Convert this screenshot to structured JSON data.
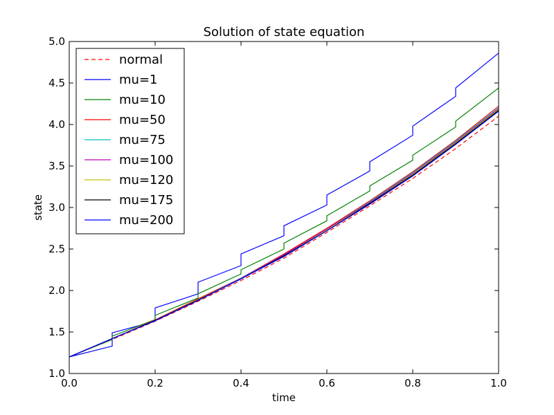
{
  "chart_data": {
    "type": "line",
    "title": "Solution of state equation",
    "xlabel": "time",
    "ylabel": "state",
    "xlim": [
      0.0,
      1.0
    ],
    "ylim": [
      1.0,
      5.0
    ],
    "xticks": [
      "0.0",
      "0.2",
      "0.4",
      "0.6",
      "0.8",
      "1.0"
    ],
    "yticks": [
      "1.0",
      "1.5",
      "2.0",
      "2.5",
      "3.0",
      "3.5",
      "4.0",
      "4.5",
      "5.0"
    ],
    "grid": false,
    "legend_position": "upper-left",
    "series": [
      {
        "name": "normal",
        "color": "#ff0000",
        "dash": true,
        "points": [
          [
            0,
            1.2
          ],
          [
            0.1,
            1.41
          ],
          [
            0.2,
            1.63
          ],
          [
            0.3,
            1.87
          ],
          [
            0.4,
            2.12
          ],
          [
            0.5,
            2.39
          ],
          [
            0.6,
            2.7
          ],
          [
            0.7,
            3.02
          ],
          [
            0.8,
            3.35
          ],
          [
            0.9,
            3.71
          ],
          [
            1.0,
            4.1
          ]
        ]
      },
      {
        "name": "mu=1",
        "color": "#0000ff",
        "dash": false,
        "points": [
          [
            0,
            1.2
          ],
          [
            0.1,
            1.33
          ],
          [
            0.1,
            1.49
          ],
          [
            0.2,
            1.63
          ],
          [
            0.2,
            1.79
          ],
          [
            0.3,
            1.96
          ],
          [
            0.3,
            2.1
          ],
          [
            0.4,
            2.3
          ],
          [
            0.4,
            2.44
          ],
          [
            0.5,
            2.66
          ],
          [
            0.5,
            2.78
          ],
          [
            0.6,
            3.03
          ],
          [
            0.6,
            3.15
          ],
          [
            0.7,
            3.44
          ],
          [
            0.7,
            3.55
          ],
          [
            0.8,
            3.87
          ],
          [
            0.8,
            3.98
          ],
          [
            0.9,
            4.34
          ],
          [
            0.9,
            4.44
          ],
          [
            1.0,
            4.86
          ]
        ]
      },
      {
        "name": "mu=10",
        "color": "#008000",
        "dash": false,
        "points": [
          [
            0,
            1.2
          ],
          [
            0.1,
            1.41
          ],
          [
            0.1,
            1.45
          ],
          [
            0.2,
            1.65
          ],
          [
            0.2,
            1.7
          ],
          [
            0.3,
            1.91
          ],
          [
            0.3,
            1.96
          ],
          [
            0.4,
            2.2
          ],
          [
            0.4,
            2.25
          ],
          [
            0.5,
            2.5
          ],
          [
            0.5,
            2.57
          ],
          [
            0.6,
            2.84
          ],
          [
            0.6,
            2.9
          ],
          [
            0.7,
            3.2
          ],
          [
            0.7,
            3.26
          ],
          [
            0.8,
            3.57
          ],
          [
            0.8,
            3.63
          ],
          [
            0.9,
            3.97
          ],
          [
            0.9,
            4.04
          ],
          [
            1.0,
            4.44
          ]
        ]
      },
      {
        "name": "mu=50",
        "color": "#ff0000",
        "dash": false,
        "points": [
          [
            0,
            1.2
          ],
          [
            0.1,
            1.42
          ],
          [
            0.2,
            1.645
          ],
          [
            0.3,
            1.9
          ],
          [
            0.4,
            2.15
          ],
          [
            0.5,
            2.44
          ],
          [
            0.6,
            2.75
          ],
          [
            0.7,
            3.08
          ],
          [
            0.8,
            3.43
          ],
          [
            0.9,
            3.81
          ],
          [
            1.0,
            4.22
          ]
        ]
      },
      {
        "name": "mu=75",
        "color": "#00bfbf",
        "dash": false,
        "points": [
          [
            0,
            1.2
          ],
          [
            0.1,
            1.42
          ],
          [
            0.2,
            1.64
          ],
          [
            0.3,
            1.89
          ],
          [
            0.4,
            2.15
          ],
          [
            0.5,
            2.43
          ],
          [
            0.6,
            2.74
          ],
          [
            0.7,
            3.07
          ],
          [
            0.8,
            3.42
          ],
          [
            0.9,
            3.8
          ],
          [
            1.0,
            4.2
          ]
        ]
      },
      {
        "name": "mu=100",
        "color": "#bf00bf",
        "dash": false,
        "points": [
          [
            0,
            1.2
          ],
          [
            0.1,
            1.42
          ],
          [
            0.2,
            1.64
          ],
          [
            0.3,
            1.89
          ],
          [
            0.4,
            2.145
          ],
          [
            0.5,
            2.43
          ],
          [
            0.6,
            2.74
          ],
          [
            0.7,
            3.06
          ],
          [
            0.8,
            3.41
          ],
          [
            0.9,
            3.79
          ],
          [
            1.0,
            4.19
          ]
        ]
      },
      {
        "name": "mu=120",
        "color": "#bfbf00",
        "dash": false,
        "points": [
          [
            0,
            1.2
          ],
          [
            0.1,
            1.42
          ],
          [
            0.2,
            1.64
          ],
          [
            0.3,
            1.89
          ],
          [
            0.4,
            2.14
          ],
          [
            0.5,
            2.42
          ],
          [
            0.6,
            2.73
          ],
          [
            0.7,
            3.05
          ],
          [
            0.8,
            3.4
          ],
          [
            0.9,
            3.78
          ],
          [
            1.0,
            4.18
          ]
        ]
      },
      {
        "name": "mu=175",
        "color": "#000000",
        "dash": false,
        "points": [
          [
            0,
            1.2
          ],
          [
            0.1,
            1.42
          ],
          [
            0.2,
            1.64
          ],
          [
            0.3,
            1.885
          ],
          [
            0.4,
            2.14
          ],
          [
            0.5,
            2.42
          ],
          [
            0.6,
            2.72
          ],
          [
            0.7,
            3.05
          ],
          [
            0.8,
            3.39
          ],
          [
            0.9,
            3.77
          ],
          [
            1.0,
            4.17
          ]
        ]
      },
      {
        "name": "mu=200",
        "color": "#0000ff",
        "dash": false,
        "points": [
          [
            0,
            1.2
          ],
          [
            0.1,
            1.42
          ],
          [
            0.2,
            1.635
          ],
          [
            0.3,
            1.88
          ],
          [
            0.4,
            2.14
          ],
          [
            0.5,
            2.41
          ],
          [
            0.6,
            2.72
          ],
          [
            0.7,
            3.04
          ],
          [
            0.8,
            3.38
          ],
          [
            0.9,
            3.76
          ],
          [
            1.0,
            4.16
          ]
        ]
      }
    ]
  }
}
